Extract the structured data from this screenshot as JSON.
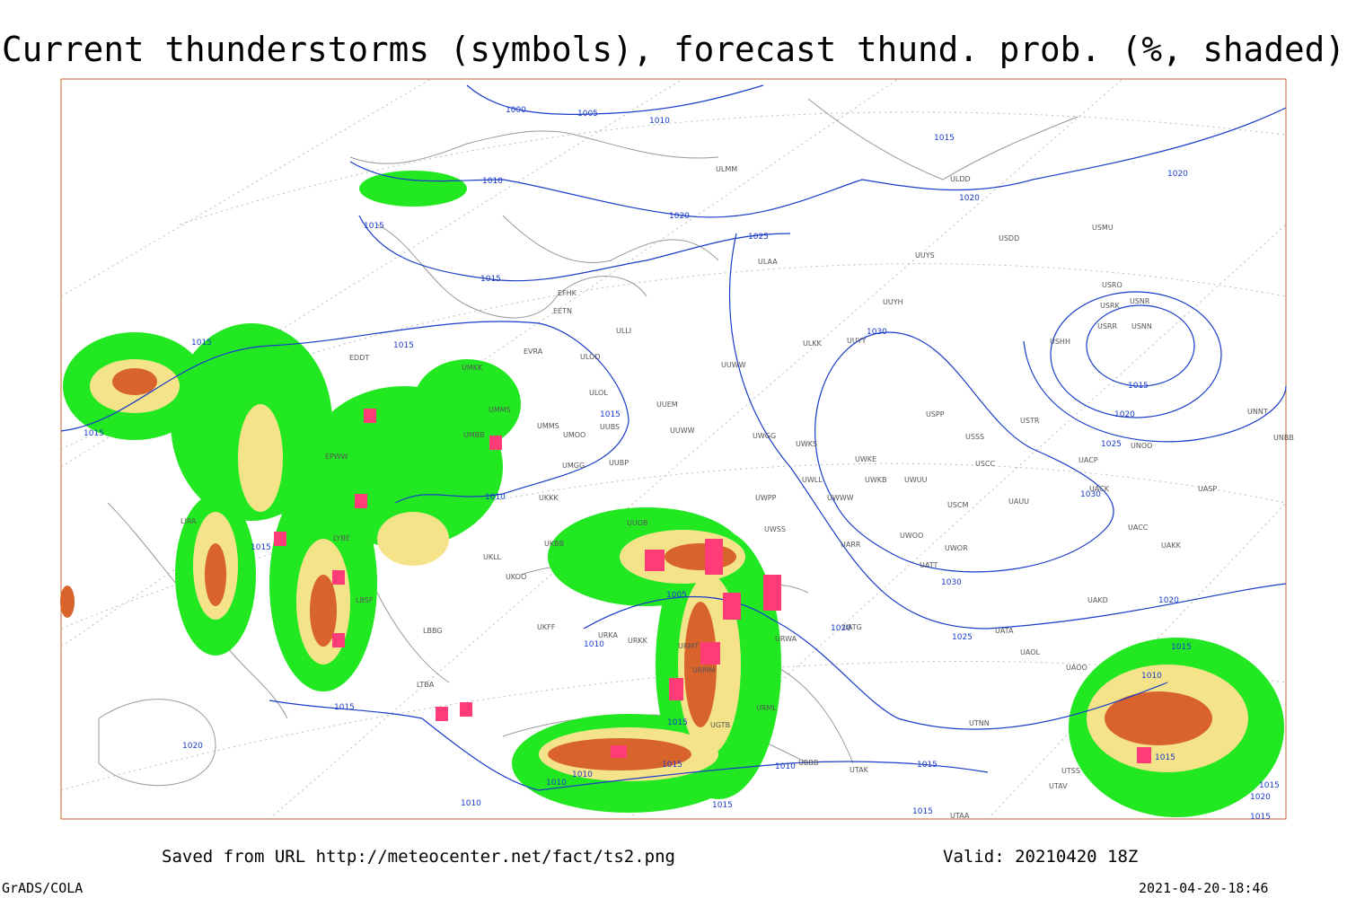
{
  "title": "Current thunderstorms (symbols), forecast thund. prob. (%, shaded)",
  "footer": {
    "source": "Saved from URL http://meteocenter.net/fact/ts2.png",
    "valid": "Valid: 20210420 18Z",
    "software": "GrADS/COLA",
    "timestamp": "2021-04-20-18:46"
  },
  "isobar_labels": [
    "1000",
    "1005",
    "1010",
    "1010",
    "1015",
    "1015",
    "1020",
    "1025",
    "1015",
    "1020",
    "1020",
    "1015",
    "1015",
    "1015",
    "1015",
    "1030",
    "1015",
    "1020",
    "1025",
    "1010",
    "1030",
    "1015",
    "1005",
    "1030",
    "1020",
    "1025",
    "1020",
    "1010",
    "1015",
    "1010",
    "1015",
    "1020",
    "1015",
    "1015",
    "1015",
    "1010",
    "1010",
    "1010",
    "1010",
    "1015",
    "1015",
    "1015",
    "1015",
    "1020",
    "1015"
  ],
  "stations": [
    "ULMM",
    "ULDD",
    "USMU",
    "USDD",
    "UUYS",
    "ULAA",
    "USRO",
    "USNR",
    "USRK",
    "UUYH",
    "USRR",
    "USNN",
    "EFHK",
    "EETN",
    "ULLI",
    "USHH",
    "ULKK",
    "UUYY",
    "EVRA",
    "EDDT",
    "ULOD",
    "UMKK",
    "UUWW",
    "ULOL",
    "UUEM",
    "UMMS",
    "USPP",
    "UUBS",
    "UMMS",
    "UMOO",
    "UUWW",
    "USSS",
    "USTR",
    "UNOO",
    "UNNT",
    "UNBB",
    "UMBB",
    "UWGG",
    "UWKS",
    "UWKE",
    "UACP",
    "USCC",
    "UMGG",
    "UUBP",
    "UWKB",
    "UWUU",
    "UWLL",
    "UACK",
    "UASP",
    "UKKK",
    "UWPP",
    "UWWW",
    "USCM",
    "UAUU",
    "UUOB",
    "UACC",
    "UWSS",
    "UKBB",
    "UARR",
    "UWOO",
    "UWOR",
    "UAKK",
    "UKLL",
    "UKOO",
    "UATT",
    "UKFF",
    "UAKD",
    "URKA",
    "URKK",
    "URWA",
    "UATA",
    "UATG",
    "UAOL",
    "UAOO",
    "URMT",
    "URMM",
    "UTNN",
    "UTSS",
    "UTAV",
    "UTAA",
    "UBBB",
    "UTAK",
    "LIRA",
    "LYBE",
    "LBBG",
    "LBSF",
    "LTBA",
    "EPWW",
    "URML",
    "UGTB"
  ]
}
